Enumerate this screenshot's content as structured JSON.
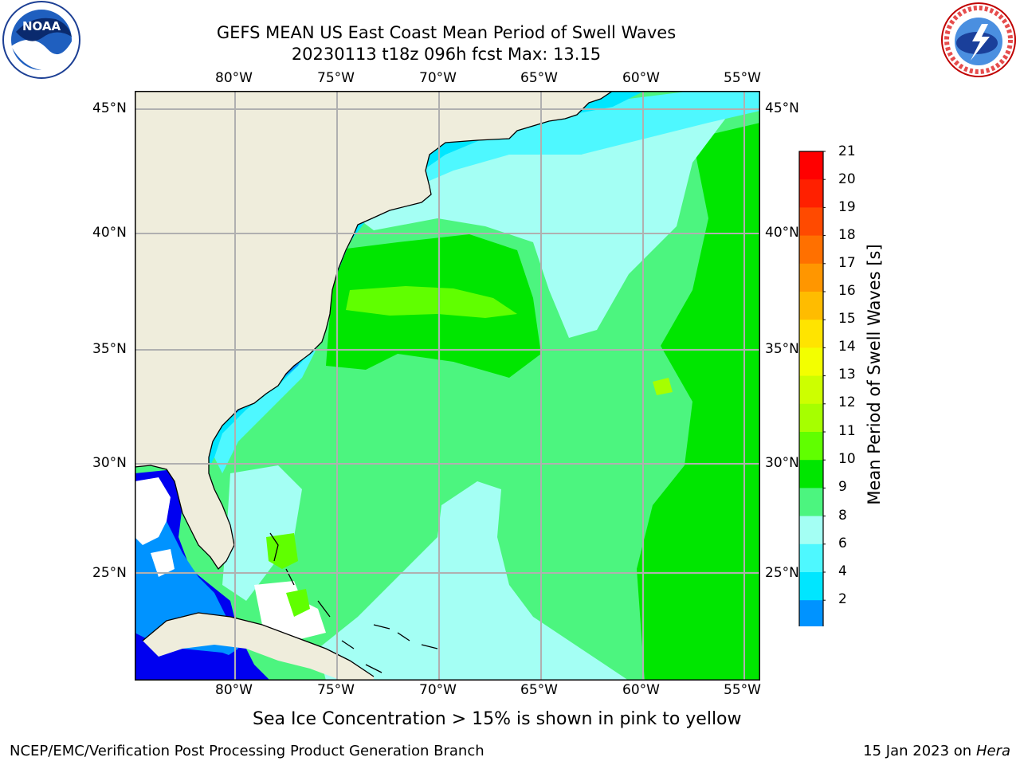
{
  "title_line1": "GEFS MEAN US East Coast Mean Period of Swell Waves",
  "title_line2": "20230113 t18z 096h fcst   Max: 13.15",
  "lon_labels": [
    "80°W",
    "75°W",
    "70°W",
    "65°W",
    "60°W",
    "55°W"
  ],
  "lat_labels": [
    "45°N",
    "40°N",
    "35°N",
    "30°N",
    "25°N"
  ],
  "colorbar": {
    "label": "Mean Period of Swell Waves [s]",
    "ticks": [
      "21",
      "20",
      "19",
      "18",
      "17",
      "16",
      "15",
      "14",
      "13",
      "12",
      "11",
      "10",
      "9",
      "8",
      "6",
      "4",
      "2"
    ],
    "colors": [
      "#ff0000",
      "#ff2000",
      "#ff4a00",
      "#ff7000",
      "#ff9600",
      "#ffbc00",
      "#ffe400",
      "#f3ff00",
      "#cdff00",
      "#a6ff00",
      "#60ff00",
      "#00e600",
      "#4cf57f",
      "#a4fff4",
      "#4ef8ff",
      "#00e6ff",
      "#0093ff",
      "#0000f0"
    ]
  },
  "sea_ice_note": "Sea Ice Concentration > 15% is shown in pink to yellow",
  "footer_left": "NCEP/EMC/Verification Post Processing Product Generation Branch",
  "footer_right_date": "15 Jan 2023 on ",
  "footer_right_host": "Hera",
  "logos": {
    "noaa": "NOAA",
    "nws": "NATIONAL WEATHER SERVICE"
  },
  "map_colors": {
    "land": "#efeddc",
    "grid": "#b0b0b0",
    "coast": "#000000"
  }
}
